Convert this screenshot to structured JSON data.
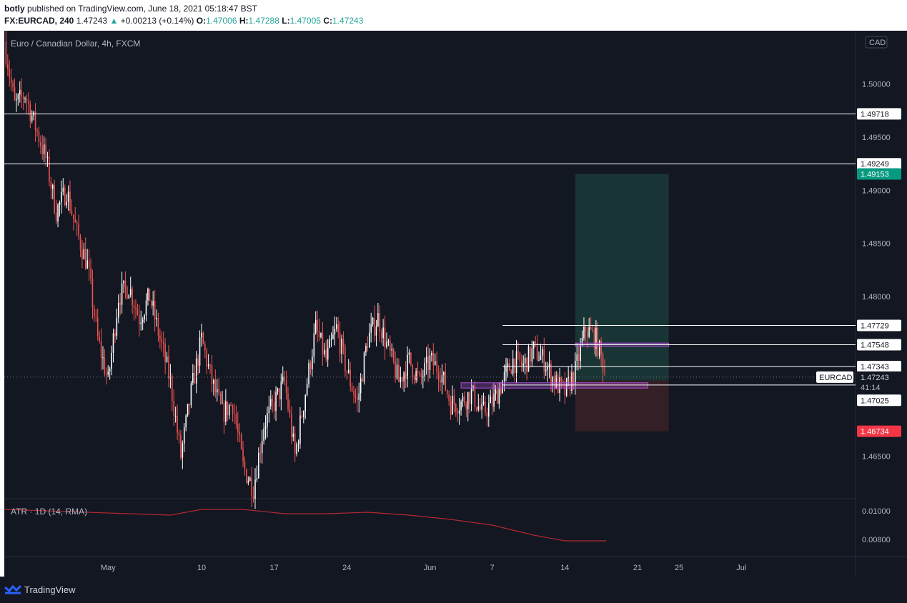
{
  "header": {
    "publisher": "botly",
    "published_text": "published on TradingView.com, June 18, 2021 05:18:47 BST",
    "symbol": "FX:EURCAD, 240",
    "last": "1.47243",
    "change_arrow": "▲",
    "change": "+0.00213 (+0.14%)",
    "o_label": "O:",
    "o_value": "1.47006",
    "h_label": "H:",
    "h_value": "1.47288",
    "l_label": "L:",
    "l_value": "1.47005",
    "c_label": "C:",
    "c_value": "1.47243"
  },
  "chart_data": {
    "type": "candlestick",
    "title": "Euro / Canadian Dollar, 4h, FXCM",
    "currency": "CAD",
    "ylim": [
      1.461,
      1.505
    ],
    "y_ticks": [
      "1.50000",
      "1.49500",
      "1.49000",
      "1.48500",
      "1.48000",
      "1.46500"
    ],
    "x_ticks": [
      "May",
      "10",
      "17",
      "24",
      "Jun",
      "7",
      "14",
      "21",
      "25",
      "Jul"
    ],
    "x_tick_dates": [
      "2021-05-01",
      "2021-05-10",
      "2021-05-17",
      "2021-05-24",
      "2021-06-01",
      "2021-06-07",
      "2021-06-14",
      "2021-06-21",
      "2021-06-25",
      "2021-07-01"
    ],
    "x_range": [
      "2021-04-21",
      "2021-07-12"
    ],
    "bull_color": "#ffffff",
    "bear_color": "#ef5350",
    "close_path": [
      [
        "2021-04-21",
        1.504
      ],
      [
        "2021-04-22",
        1.498
      ],
      [
        "2021-04-23",
        1.499
      ],
      [
        "2021-04-24",
        1.496
      ],
      [
        "2021-04-25",
        1.493
      ],
      [
        "2021-04-26",
        1.488
      ],
      [
        "2021-04-27",
        1.49
      ],
      [
        "2021-04-28",
        1.486
      ],
      [
        "2021-04-29",
        1.483
      ],
      [
        "2021-04-30",
        1.476
      ],
      [
        "2021-05-01",
        1.472
      ],
      [
        "2021-05-02",
        1.48
      ],
      [
        "2021-05-03",
        1.481
      ],
      [
        "2021-05-04",
        1.478
      ],
      [
        "2021-05-05",
        1.48
      ],
      [
        "2021-05-06",
        1.476
      ],
      [
        "2021-05-07",
        1.472
      ],
      [
        "2021-05-08",
        1.465
      ],
      [
        "2021-05-09",
        1.471
      ],
      [
        "2021-05-10",
        1.476
      ],
      [
        "2021-05-11",
        1.472
      ],
      [
        "2021-05-12",
        1.469
      ],
      [
        "2021-05-13",
        1.47
      ],
      [
        "2021-05-14",
        1.464
      ],
      [
        "2021-05-15",
        1.462
      ],
      [
        "2021-05-16",
        1.468
      ],
      [
        "2021-05-17",
        1.47
      ],
      [
        "2021-05-18",
        1.472
      ],
      [
        "2021-05-19",
        1.465
      ],
      [
        "2021-05-20",
        1.471
      ],
      [
        "2021-05-21",
        1.477
      ],
      [
        "2021-05-22",
        1.474
      ],
      [
        "2021-05-23",
        1.477
      ],
      [
        "2021-05-24",
        1.473
      ],
      [
        "2021-05-25",
        1.47
      ],
      [
        "2021-05-26",
        1.476
      ],
      [
        "2021-05-27",
        1.478
      ],
      [
        "2021-05-28",
        1.475
      ],
      [
        "2021-05-29",
        1.472
      ],
      [
        "2021-05-30",
        1.474
      ],
      [
        "2021-05-31",
        1.472
      ],
      [
        "2021-06-01",
        1.474
      ],
      [
        "2021-06-02",
        1.473
      ],
      [
        "2021-06-03",
        1.47
      ],
      [
        "2021-06-04",
        1.47
      ],
      [
        "2021-06-05",
        1.471
      ],
      [
        "2021-06-06",
        1.469
      ],
      [
        "2021-06-07",
        1.47
      ],
      [
        "2021-06-08",
        1.472
      ],
      [
        "2021-06-09",
        1.474
      ],
      [
        "2021-06-10",
        1.4735
      ],
      [
        "2021-06-11",
        1.475
      ],
      [
        "2021-06-12",
        1.474
      ],
      [
        "2021-06-13",
        1.472
      ],
      [
        "2021-06-14",
        1.471
      ],
      [
        "2021-06-15",
        1.473
      ],
      [
        "2021-06-16",
        1.477
      ],
      [
        "2021-06-17",
        1.476
      ],
      [
        "2021-06-18",
        1.4725
      ]
    ],
    "horizontal_levels": [
      {
        "price": 1.49718,
        "label": "1.49718",
        "color": "#ffffff"
      },
      {
        "price": 1.49249,
        "label": "1.49249",
        "color": "#ffffff"
      },
      {
        "price": 1.47729,
        "label": "1.47729",
        "color": "#ffffff"
      },
      {
        "price": 1.47548,
        "label": "1.47548",
        "color": "#ffffff"
      },
      {
        "price": 1.47343,
        "label": "1.47343",
        "color": "#ffffff"
      },
      {
        "price": 1.47169,
        "label": "1.47169",
        "color": "#ffffff"
      }
    ],
    "current_price": {
      "price": 1.47243,
      "label": "1.47243",
      "symbol": "EURCAD",
      "countdown": "41:14",
      "color": "#ffffff"
    },
    "price_labels": [
      {
        "price": 1.49153,
        "label": "1.49153",
        "color": "#089981"
      },
      {
        "price": 1.47025,
        "label": "1.47025",
        "color": "#ffffff"
      },
      {
        "price": 1.46734,
        "label": "1.46734",
        "color": "#f23645"
      }
    ],
    "position": {
      "type": "long",
      "start": "2021-06-15",
      "end": "2021-06-24",
      "entry": 1.4721,
      "target": 1.49153,
      "stop": 1.46734,
      "profit_color": "#1b3a38",
      "loss_color": "#3a2126"
    },
    "zones": [
      {
        "start": "2021-06-15",
        "end": "2021-06-24",
        "low": 1.47533,
        "high": 1.47563,
        "color": "#b04fd4"
      },
      {
        "start": "2021-06-04",
        "end": "2021-06-22",
        "low": 1.4714,
        "high": 1.4719,
        "color": "#b04fd4"
      }
    ],
    "indicator": {
      "name": "ATR · 1D (14, RMA)",
      "y_ticks": [
        "0.01000",
        "0.00800"
      ],
      "ylim": [
        0.0068,
        0.0108
      ],
      "color": "#b22833",
      "points": [
        [
          "2021-04-21",
          0.0101
        ],
        [
          "2021-05-03",
          0.0098
        ],
        [
          "2021-05-07",
          0.0097
        ],
        [
          "2021-05-10",
          0.0101
        ],
        [
          "2021-05-14",
          0.0101
        ],
        [
          "2021-05-18",
          0.0098
        ],
        [
          "2021-05-22",
          0.0098
        ],
        [
          "2021-05-26",
          0.0099
        ],
        [
          "2021-05-30",
          0.0097
        ],
        [
          "2021-06-03",
          0.0094
        ],
        [
          "2021-06-07",
          0.009
        ],
        [
          "2021-06-11",
          0.0083
        ],
        [
          "2021-06-14",
          0.0079
        ],
        [
          "2021-06-16",
          0.0079
        ],
        [
          "2021-06-18",
          0.0079
        ]
      ]
    }
  },
  "footer": {
    "brand": "TradingView"
  }
}
